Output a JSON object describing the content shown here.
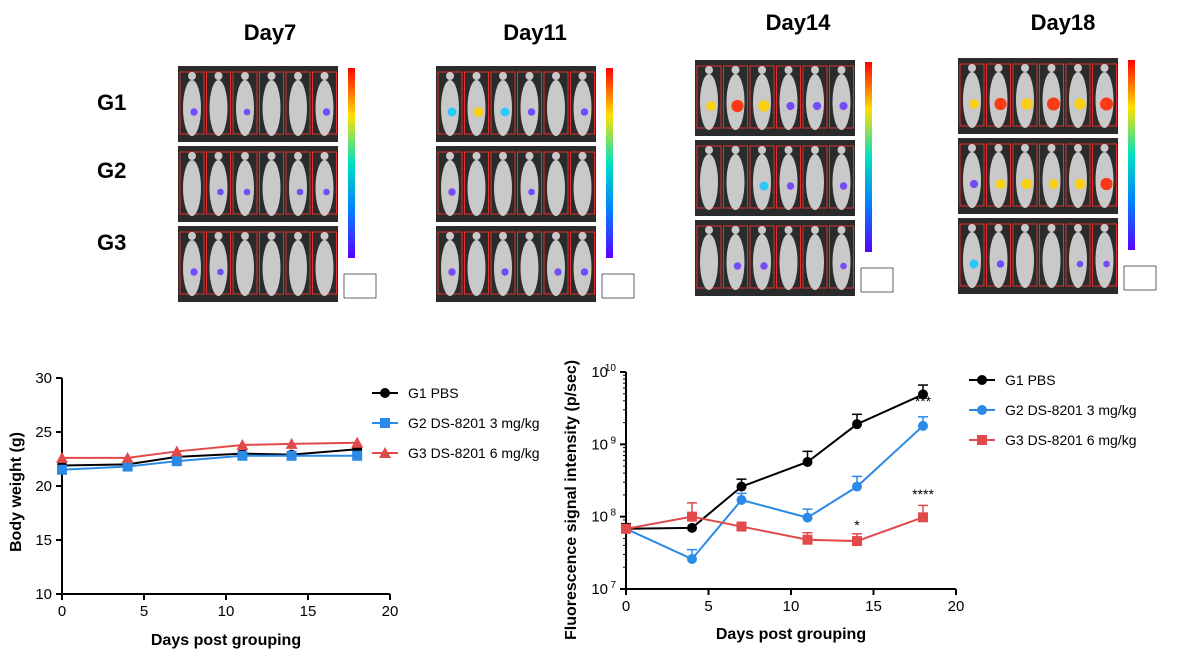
{
  "imaging": {
    "days": [
      "Day7",
      "Day11",
      "Day14",
      "Day18"
    ],
    "groups": [
      "G1",
      "G2",
      "G3"
    ],
    "colors": {
      "mouse": "#c9c9c9",
      "bg": "#2b2b2b",
      "frame": "#e23030",
      "signal_low": "#6a3cff",
      "signal_high": "#ff2a00"
    },
    "icons": [
      "mouse-silhouette-icon",
      "radiance-colorbar-icon"
    ]
  },
  "chart_data": [
    {
      "type": "line",
      "xlabel": "Days post grouping",
      "ylabel": "Body weight (g)",
      "xlim": [
        0,
        20
      ],
      "ylim": [
        10,
        30
      ],
      "xticks": [
        "0",
        "5",
        "10",
        "15",
        "20"
      ],
      "yticks": [
        "10",
        "15",
        "20",
        "25",
        "30"
      ],
      "legend_position": "top-right outside",
      "x": [
        0,
        4,
        7,
        11,
        14,
        18
      ],
      "series": [
        {
          "name": "G1 PBS",
          "color": "#000000",
          "marker": "circle",
          "values": [
            21.9,
            22.0,
            22.7,
            23.0,
            22.9,
            23.4
          ]
        },
        {
          "name": "G2 DS-8201 3 mg/kg",
          "color": "#2b8ae8",
          "marker": "square",
          "values": [
            21.5,
            21.8,
            22.3,
            22.8,
            22.8,
            22.8
          ]
        },
        {
          "name": "G3 DS-8201 6 mg/kg",
          "color": "#e24a4a",
          "marker": "triangle",
          "values": [
            22.6,
            22.6,
            23.2,
            23.8,
            23.9,
            24.0
          ]
        }
      ]
    },
    {
      "type": "line",
      "xlabel": "Days post grouping",
      "ylabel": "Fluorescence signal intensity (p/sec)",
      "xlim": [
        0,
        20
      ],
      "ylim": [
        10000000.0,
        10000000000.0
      ],
      "yscale": "log",
      "xticks": [
        "0",
        "5",
        "10",
        "15",
        "20"
      ],
      "yticks": [
        "10",
        "10",
        "10",
        "10"
      ],
      "ytick_exponents": [
        "7",
        "8",
        "9",
        "10"
      ],
      "legend_position": "top-right outside",
      "x": [
        0,
        4,
        7,
        11,
        14,
        18
      ],
      "series": [
        {
          "name": "G1 PBS",
          "color": "#000000",
          "marker": "circle",
          "values": [
            68000000,
            70000000,
            260000000,
            570000000,
            1900000000,
            4900000000
          ],
          "err": [
            12000000,
            0,
            70000000,
            230000000,
            700000000,
            1700000000
          ]
        },
        {
          "name": "G2 DS-8201 3 mg/kg",
          "color": "#2b8ae8",
          "marker": "circle",
          "values": [
            68000000,
            26000000,
            170000000,
            97000000,
            260000000,
            1800000000
          ],
          "err": [
            0,
            9000000,
            40000000,
            30000000,
            100000000,
            600000000
          ]
        },
        {
          "name": "G3 DS-8201 6 mg/kg",
          "color": "#e24a4a",
          "marker": "square",
          "values": [
            68000000,
            100000000,
            73000000,
            48000000,
            46000000,
            98000000
          ],
          "err": [
            0,
            55000000,
            0,
            12000000,
            12000000,
            45000000
          ]
        }
      ],
      "annotations": [
        {
          "text": "***",
          "x": 18,
          "y": 3400000000
        },
        {
          "text": "*",
          "x": 14,
          "y": 65000000
        },
        {
          "text": "****",
          "x": 18,
          "y": 175000000
        }
      ]
    }
  ]
}
